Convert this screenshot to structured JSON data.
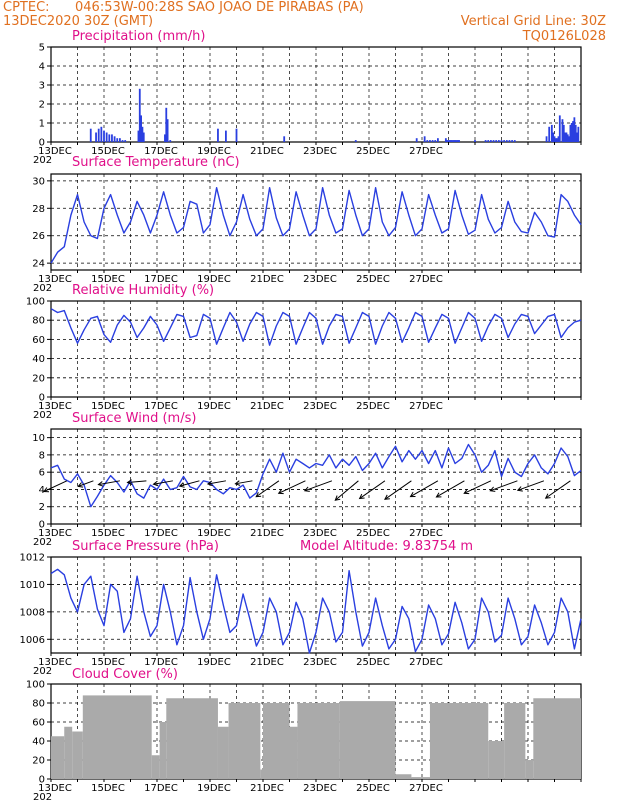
{
  "header": {
    "source": "CPTEC:",
    "location": "046:53W-00:28S  SAO JOAO DE PIRABAS (PA)",
    "run": "13DEC2020 30Z (GMT)",
    "grid_note": "Vertical Grid Line: 30Z",
    "code": "TQ0126L028"
  },
  "x_ticks": [
    "13DEC",
    "15DEC",
    "17DEC",
    "19DEC",
    "21DEC",
    "23DEC",
    "25DEC",
    "27DEC"
  ],
  "x_year": "202",
  "panels": {
    "precip": {
      "title": "Precipitation (mm/h)"
    },
    "temp": {
      "title": "Surface Temperature (nC)"
    },
    "rh": {
      "title": "Relative Humidity (%)"
    },
    "wind": {
      "title": "Surface Wind (m/s)"
    },
    "pres": {
      "title": "Surface Pressure (hPa)",
      "extra": "Model Altitude: 9.83754 m"
    },
    "cloud": {
      "title": "Cloud Cover (%)"
    }
  },
  "colors": {
    "line": "#2a3fe0",
    "bar": "#2a3fe0",
    "cloud": "#aaaaaa",
    "title": "#e0108a",
    "header": "#e07020",
    "arrow": "#000000"
  },
  "chart_data": [
    {
      "type": "bar",
      "title": "Precipitation (mm/h)",
      "x_unit": "days since 13DEC2020 00Z",
      "ylim": [
        0,
        5
      ],
      "yticks": [
        0,
        1,
        2,
        3,
        4,
        5
      ],
      "x": [
        1.5,
        1.7,
        1.8,
        1.9,
        2.0,
        2.1,
        2.2,
        2.3,
        2.4,
        2.5,
        2.6,
        2.7,
        2.8,
        3.3,
        3.35,
        3.4,
        3.45,
        3.5,
        4.3,
        4.35,
        4.4,
        4.5,
        6.3,
        6.6,
        7.0,
        8.8,
        11.5,
        13.8,
        14.1,
        14.2,
        14.3,
        14.4,
        14.5,
        14.6,
        14.9,
        14.95,
        15.0,
        15.05,
        15.1,
        15.15,
        15.2,
        15.25,
        15.3,
        15.35,
        15.4,
        16.0,
        16.4,
        16.5,
        16.6,
        16.7,
        16.8,
        16.9,
        17.0,
        17.1,
        17.2,
        17.3,
        17.4,
        17.5,
        18.7,
        18.8,
        18.9,
        18.95,
        19.0,
        19.05,
        19.1,
        19.15,
        19.2,
        19.3,
        19.35,
        19.4,
        19.45,
        19.5,
        19.55,
        19.6,
        19.65,
        19.7,
        19.75,
        19.8,
        19.85,
        19.9
      ],
      "values": [
        0.7,
        0.5,
        0.7,
        0.8,
        0.6,
        0.5,
        0.4,
        0.4,
        0.3,
        0.2,
        0.2,
        0.1,
        0.1,
        0.6,
        2.8,
        1.4,
        0.8,
        0.5,
        0.4,
        1.8,
        1.2,
        0.1,
        0.7,
        0.6,
        0.7,
        0.3,
        0.1,
        0.2,
        0.3,
        0.1,
        0.1,
        0.1,
        0.1,
        0.2,
        0.2,
        0.1,
        0.1,
        0.1,
        0.1,
        0.1,
        0.1,
        0.1,
        0.1,
        0.1,
        0.1,
        0.1,
        0.1,
        0.1,
        0.1,
        0.1,
        0.1,
        0.1,
        0.1,
        0.1,
        0.1,
        0.1,
        0.1,
        0.1,
        0.3,
        0.8,
        0.9,
        0.5,
        0.3,
        0.2,
        0.2,
        0.3,
        1.4,
        1.2,
        0.9,
        0.5,
        0.5,
        0.4,
        0.3,
        0.9,
        1.0,
        1.1,
        1.3,
        0.9,
        0.5,
        0.8
      ]
    },
    {
      "type": "line",
      "title": "Surface Temperature (nC)",
      "x_unit": "days since 13DEC2020 00Z",
      "ylim": [
        23.5,
        30.5
      ],
      "yticks": [
        24,
        26,
        28,
        30
      ],
      "x": [
        0,
        0.25,
        0.5,
        0.75,
        1.0,
        1.25,
        1.5,
        1.75,
        2.0,
        2.25,
        2.5,
        2.75,
        3.0,
        3.25,
        3.5,
        3.75,
        4.0,
        4.25,
        4.5,
        4.75,
        5.0,
        5.25,
        5.5,
        5.75,
        6.0,
        6.25,
        6.5,
        6.75,
        7.0,
        7.25,
        7.5,
        7.75,
        8.0,
        8.25,
        8.5,
        8.75,
        9.0,
        9.25,
        9.5,
        9.75,
        10.0,
        10.25,
        10.5,
        10.75,
        11.0,
        11.25,
        11.5,
        11.75,
        12.0,
        12.25,
        12.5,
        12.75,
        13.0,
        13.25,
        13.5,
        13.75,
        14.0,
        14.25,
        14.5,
        14.75,
        15.0,
        15.25,
        15.5,
        15.75,
        16.0,
        16.25,
        16.5,
        16.75,
        17.0,
        17.25,
        17.5,
        17.75,
        18.0,
        18.25,
        18.5,
        18.75,
        19.0,
        19.25,
        19.5,
        19.75,
        20.0
      ],
      "values": [
        24.0,
        24.8,
        25.2,
        27.5,
        29.0,
        27.0,
        26.0,
        25.8,
        28.0,
        29.0,
        27.5,
        26.2,
        27.0,
        28.5,
        27.5,
        26.2,
        27.5,
        29.2,
        27.5,
        26.2,
        26.6,
        28.5,
        28.3,
        26.2,
        26.8,
        29.5,
        27.5,
        26.0,
        27.0,
        29.0,
        27.2,
        26.0,
        26.5,
        29.5,
        27.3,
        26.0,
        26.5,
        29.2,
        27.5,
        26.0,
        26.5,
        29.5,
        27.5,
        26.2,
        26.5,
        29.3,
        27.5,
        26.0,
        26.5,
        29.5,
        27.0,
        26.0,
        26.6,
        29.2,
        27.5,
        26.0,
        26.5,
        29.0,
        27.5,
        26.2,
        26.5,
        29.3,
        27.5,
        26.1,
        26.4,
        29.0,
        27.2,
        26.2,
        26.6,
        28.5,
        27.0,
        26.3,
        26.2,
        27.7,
        27.0,
        26.0,
        25.9,
        29.0,
        28.5,
        27.5,
        26.8
      ]
    },
    {
      "type": "line",
      "title": "Relative Humidity (%)",
      "x_unit": "days since 13DEC2020 00Z",
      "ylim": [
        0,
        100
      ],
      "yticks": [
        0,
        20,
        40,
        60,
        80,
        100
      ],
      "x": [
        0,
        0.25,
        0.5,
        0.75,
        1.0,
        1.25,
        1.5,
        1.75,
        2.0,
        2.25,
        2.5,
        2.75,
        3.0,
        3.25,
        3.5,
        3.75,
        4.0,
        4.25,
        4.5,
        4.75,
        5.0,
        5.25,
        5.5,
        5.75,
        6.0,
        6.25,
        6.5,
        6.75,
        7.0,
        7.25,
        7.5,
        7.75,
        8.0,
        8.25,
        8.5,
        8.75,
        9.0,
        9.25,
        9.5,
        9.75,
        10.0,
        10.25,
        10.5,
        10.75,
        11.0,
        11.25,
        11.5,
        11.75,
        12.0,
        12.25,
        12.5,
        12.75,
        13.0,
        13.25,
        13.5,
        13.75,
        14.0,
        14.25,
        14.5,
        14.75,
        15.0,
        15.25,
        15.5,
        15.75,
        16.0,
        16.25,
        16.5,
        16.75,
        17.0,
        17.25,
        17.5,
        17.75,
        18.0,
        18.25,
        18.5,
        18.75,
        19.0,
        19.25,
        19.5,
        19.75,
        20.0
      ],
      "values": [
        92,
        88,
        90,
        72,
        56,
        70,
        82,
        84,
        65,
        57,
        75,
        85,
        78,
        62,
        72,
        84,
        75,
        58,
        72,
        86,
        84,
        62,
        64,
        86,
        82,
        55,
        72,
        88,
        78,
        58,
        76,
        88,
        84,
        54,
        74,
        88,
        84,
        55,
        72,
        88,
        82,
        55,
        74,
        86,
        84,
        56,
        72,
        88,
        84,
        55,
        74,
        88,
        82,
        57,
        72,
        88,
        84,
        57,
        72,
        86,
        82,
        56,
        72,
        88,
        82,
        58,
        74,
        86,
        82,
        62,
        76,
        86,
        84,
        66,
        75,
        84,
        86,
        62,
        72,
        78,
        80
      ]
    },
    {
      "type": "line",
      "title": "Surface Wind (m/s)",
      "x_unit": "days since 13DEC2020 00Z",
      "ylim": [
        0,
        11
      ],
      "yticks": [
        0,
        2,
        4,
        6,
        8,
        10
      ],
      "x": [
        0,
        0.25,
        0.5,
        0.75,
        1.0,
        1.25,
        1.5,
        1.75,
        2.0,
        2.25,
        2.5,
        2.75,
        3.0,
        3.25,
        3.5,
        3.75,
        4.0,
        4.25,
        4.5,
        4.75,
        5.0,
        5.25,
        5.5,
        5.75,
        6.0,
        6.25,
        6.5,
        6.75,
        7.0,
        7.25,
        7.5,
        7.75,
        8.0,
        8.25,
        8.5,
        8.75,
        9.0,
        9.25,
        9.5,
        9.75,
        10.0,
        10.25,
        10.5,
        10.75,
        11.0,
        11.25,
        11.5,
        11.75,
        12.0,
        12.25,
        12.5,
        12.75,
        13.0,
        13.25,
        13.5,
        13.75,
        14.0,
        14.25,
        14.5,
        14.75,
        15.0,
        15.25,
        15.5,
        15.75,
        16.0,
        16.25,
        16.5,
        16.75,
        17.0,
        17.25,
        17.5,
        17.75,
        18.0,
        18.25,
        18.5,
        18.75,
        19.0,
        19.25,
        19.5,
        19.75,
        20.0
      ],
      "values": [
        6.5,
        6.8,
        5.2,
        4.8,
        5.8,
        4.5,
        2.0,
        3.2,
        4.5,
        5.6,
        4.8,
        3.7,
        5.0,
        3.5,
        3.0,
        4.5,
        4.0,
        5.2,
        4.0,
        4.2,
        5.5,
        4.3,
        4.0,
        5.0,
        4.8,
        4.0,
        3.5,
        4.2,
        4.0,
        4.5,
        3.0,
        3.6,
        5.8,
        7.5,
        6.0,
        8.2,
        6.0,
        7.5,
        7.0,
        6.5,
        7.0,
        6.8,
        8.0,
        6.5,
        7.5,
        6.8,
        7.8,
        6.2,
        7.0,
        8.2,
        6.5,
        7.8,
        9.0,
        7.2,
        8.5,
        7.5,
        8.5,
        7.0,
        8.5,
        6.5,
        8.8,
        7.0,
        7.6,
        9.2,
        8.0,
        6.0,
        6.8,
        8.5,
        5.5,
        7.6,
        6.0,
        5.5,
        7.0,
        8.0,
        6.5,
        5.8,
        7.0,
        8.8,
        7.8,
        5.6,
        6.2
      ],
      "arrows": {
        "x": [
          0.6,
          1.6,
          2.6,
          3.6,
          4.6,
          5.6,
          6.6,
          7.6,
          8.6,
          9.6,
          10.6,
          11.6,
          12.6,
          13.6,
          14.6,
          15.6,
          16.6,
          17.6,
          18.6,
          19.6
        ],
        "speed": [
          5.8,
          3.2,
          4.8,
          4.0,
          4.2,
          4.4,
          3.8,
          3.5,
          6.5,
          7.0,
          6.8,
          7.2,
          7.4,
          7.8,
          7.6,
          7.8,
          7.0,
          6.8,
          6.5,
          7.2
        ],
        "direction_deg": [
          65,
          70,
          80,
          85,
          80,
          75,
          80,
          80,
          55,
          65,
          70,
          50,
          55,
          55,
          60,
          60,
          65,
          70,
          70,
          55
        ]
      }
    },
    {
      "type": "line",
      "title": "Surface Pressure (hPa)",
      "x_unit": "days since 13DEC2020 00Z",
      "ylim": [
        1005,
        1012
      ],
      "yticks": [
        1006,
        1008,
        1010,
        1012
      ],
      "x": [
        0,
        0.25,
        0.5,
        0.75,
        1.0,
        1.25,
        1.5,
        1.75,
        2.0,
        2.25,
        2.5,
        2.75,
        3.0,
        3.25,
        3.5,
        3.75,
        4.0,
        4.25,
        4.5,
        4.75,
        5.0,
        5.25,
        5.5,
        5.75,
        6.0,
        6.25,
        6.5,
        6.75,
        7.0,
        7.25,
        7.5,
        7.75,
        8.0,
        8.25,
        8.5,
        8.75,
        9.0,
        9.25,
        9.5,
        9.75,
        10.0,
        10.25,
        10.5,
        10.75,
        11.0,
        11.25,
        11.5,
        11.75,
        12.0,
        12.25,
        12.5,
        12.75,
        13.0,
        13.25,
        13.5,
        13.75,
        14.0,
        14.25,
        14.5,
        14.75,
        15.0,
        15.25,
        15.5,
        15.75,
        16.0,
        16.25,
        16.5,
        16.75,
        17.0,
        17.25,
        17.5,
        17.75,
        18.0,
        18.25,
        18.5,
        18.75,
        19.0,
        19.25,
        19.5,
        19.75,
        20.0
      ],
      "values": [
        1010.8,
        1011.1,
        1010.7,
        1009.0,
        1008.0,
        1010.0,
        1010.6,
        1008.2,
        1007.0,
        1010.0,
        1009.5,
        1006.5,
        1007.5,
        1010.6,
        1008.0,
        1006.2,
        1007.0,
        1010.0,
        1008.0,
        1005.6,
        1007.0,
        1010.5,
        1008.0,
        1006.0,
        1007.5,
        1010.7,
        1008.5,
        1006.5,
        1007.0,
        1009.3,
        1007.5,
        1005.5,
        1006.5,
        1009.0,
        1008.0,
        1005.6,
        1006.5,
        1008.7,
        1007.5,
        1005.0,
        1006.5,
        1009.0,
        1008.0,
        1005.8,
        1006.5,
        1011.0,
        1008.0,
        1005.5,
        1006.5,
        1009.0,
        1007.0,
        1005.3,
        1006.0,
        1008.4,
        1007.5,
        1005.1,
        1006.0,
        1008.5,
        1007.5,
        1005.6,
        1006.4,
        1008.7,
        1007.2,
        1005.3,
        1006.0,
        1009.0,
        1008.0,
        1005.8,
        1006.3,
        1009.0,
        1007.5,
        1005.6,
        1006.2,
        1008.5,
        1007.2,
        1005.6,
        1006.5,
        1009.0,
        1008.0,
        1005.3,
        1007.5
      ]
    },
    {
      "type": "bar",
      "title": "Cloud Cover (%)",
      "x_unit": "days since 13DEC2020 00Z",
      "ylim": [
        0,
        100
      ],
      "yticks": [
        0,
        20,
        40,
        60,
        80,
        100
      ],
      "segments": [
        {
          "x0": 0.0,
          "x1": 0.5,
          "level": 45
        },
        {
          "x0": 0.5,
          "x1": 0.8,
          "level": 55
        },
        {
          "x0": 0.8,
          "x1": 1.2,
          "level": 50
        },
        {
          "x0": 1.2,
          "x1": 3.8,
          "level": 88
        },
        {
          "x0": 3.8,
          "x1": 4.1,
          "level": 25
        },
        {
          "x0": 4.1,
          "x1": 4.35,
          "level": 60
        },
        {
          "x0": 4.35,
          "x1": 6.3,
          "level": 85
        },
        {
          "x0": 6.3,
          "x1": 6.7,
          "level": 55
        },
        {
          "x0": 6.7,
          "x1": 7.9,
          "level": 80
        },
        {
          "x0": 7.9,
          "x1": 8.0,
          "level": 10
        },
        {
          "x0": 8.0,
          "x1": 9.0,
          "level": 80
        },
        {
          "x0": 9.0,
          "x1": 9.3,
          "level": 55
        },
        {
          "x0": 9.3,
          "x1": 10.9,
          "level": 80
        },
        {
          "x0": 10.9,
          "x1": 13.0,
          "level": 82
        },
        {
          "x0": 13.0,
          "x1": 13.6,
          "level": 5
        },
        {
          "x0": 13.6,
          "x1": 14.3,
          "level": 2
        },
        {
          "x0": 14.3,
          "x1": 16.5,
          "level": 80
        },
        {
          "x0": 16.5,
          "x1": 17.1,
          "level": 40
        },
        {
          "x0": 17.1,
          "x1": 17.9,
          "level": 80
        },
        {
          "x0": 17.9,
          "x1": 18.2,
          "level": 20
        },
        {
          "x0": 18.2,
          "x1": 20.0,
          "level": 85
        }
      ]
    }
  ]
}
